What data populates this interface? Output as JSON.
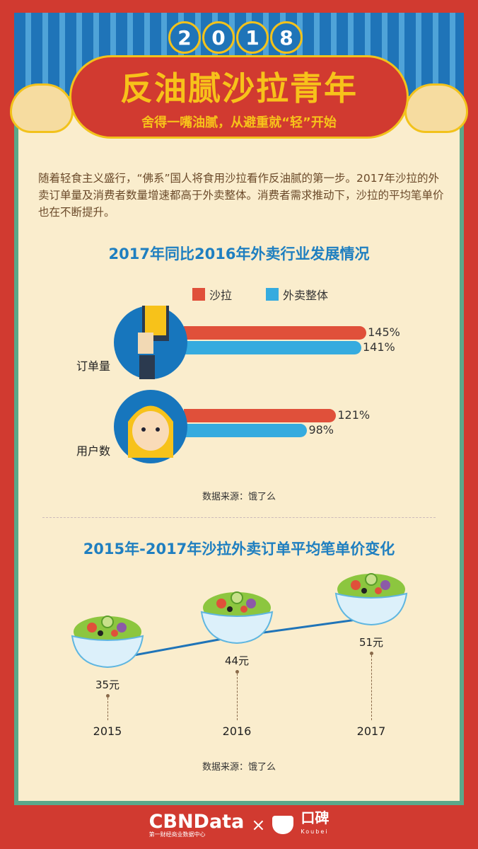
{
  "header": {
    "year_digits": [
      "2",
      "0",
      "1",
      "8"
    ],
    "title": "反油腻沙拉青年",
    "subtitle": "舍得一嘴油腻，从避重就“轻”开始"
  },
  "intro": "随着轻食主义盛行，“佛系”国人将食用沙拉看作反油腻的第一步。2017年沙拉的外卖订单量及消费者数量增速都高于外卖整体。消费者需求推动下，沙拉的平均笔单价也在不断提升。",
  "colors": {
    "salad": "#e0503a",
    "delivery": "#35abdf",
    "accent": "#1f7fc0",
    "border": "#d13a30",
    "background": "#faedcd"
  },
  "chart_data": [
    {
      "type": "bar",
      "orientation": "horizontal",
      "title": "2017年同比2016年外卖行业发展情况",
      "categories": [
        "订单量",
        "用户数"
      ],
      "series": [
        {
          "name": "沙拉",
          "values": [
            145,
            121
          ],
          "labels": [
            "145%",
            "121%"
          ]
        },
        {
          "name": "外卖整体",
          "values": [
            141,
            98
          ],
          "labels": [
            "141%",
            "98%"
          ]
        }
      ],
      "legend": "top",
      "icons": [
        "phone-in-hand-icon",
        "girl-face-icon"
      ],
      "source": "数据来源：饿了么"
    },
    {
      "type": "line",
      "title": "2015年-2017年沙拉外卖订单平均笔单价变化",
      "x": [
        "2015",
        "2016",
        "2017"
      ],
      "values": [
        35,
        44,
        51
      ],
      "labels": [
        "35元",
        "44元",
        "51元"
      ],
      "marker": "salad-bowl-icon",
      "source": "数据来源：饿了么"
    }
  ],
  "footer": {
    "brand1": "CBNData",
    "brand1_sub": "第一财经商业数据中心",
    "times": "×",
    "brand2": "口碑",
    "brand2_sub": "Koubei"
  }
}
